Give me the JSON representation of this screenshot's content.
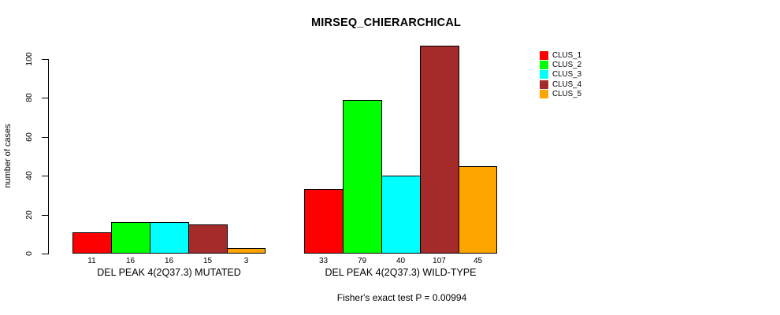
{
  "title": "MIRSEQ_CHIERARCHICAL",
  "footer_annotation": "Fisher's exact test P = 0.00994",
  "chart_data": {
    "type": "bar",
    "title": "MIRSEQ_CHIERARCHICAL",
    "xlabel": "",
    "ylabel": "number of cases",
    "ylim": [
      0,
      100
    ],
    "yticks": [
      0,
      20,
      40,
      60,
      80,
      100
    ],
    "grid": false,
    "legend_position": "top-right",
    "categories": [
      "DEL PEAK 4(2Q37.3) MUTATED",
      "DEL PEAK 4(2Q37.3) WILD-TYPE"
    ],
    "series": [
      {
        "name": "CLUS_1",
        "color": "#FF0000",
        "values": [
          11,
          33
        ]
      },
      {
        "name": "CLUS_2",
        "color": "#00FF00",
        "values": [
          16,
          79
        ]
      },
      {
        "name": "CLUS_3",
        "color": "#00FFFF",
        "values": [
          16,
          40
        ]
      },
      {
        "name": "CLUS_4",
        "color": "#A52A2A",
        "values": [
          15,
          107
        ]
      },
      {
        "name": "CLUS_5",
        "color": "#FFA500",
        "values": [
          3,
          45
        ]
      }
    ],
    "bar_value_labels": [
      [
        11,
        16,
        16,
        15,
        3
      ],
      [
        33,
        79,
        40,
        107,
        45
      ]
    ],
    "annotation": "Fisher's exact test P = 0.00994"
  }
}
